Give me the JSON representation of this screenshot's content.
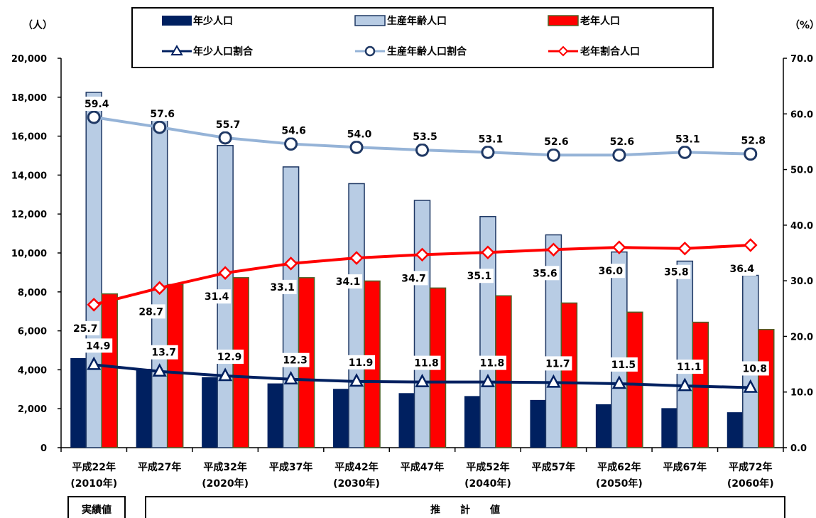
{
  "chart_data": {
    "type": "bar",
    "left_unit": "（人）",
    "right_unit": "（%）",
    "left_ylim": [
      0,
      20000
    ],
    "right_ylim": [
      0,
      70
    ],
    "left_ticks": [
      "0",
      "2,000",
      "4,000",
      "6,000",
      "8,000",
      "10,000",
      "12,000",
      "14,000",
      "16,000",
      "18,000",
      "20,000"
    ],
    "right_ticks": [
      "0.0",
      "10.0",
      "20.0",
      "30.0",
      "40.0",
      "50.0",
      "60.0",
      "70.0"
    ],
    "categories": [
      {
        "line1": "平成22年",
        "line2": "(2010年)"
      },
      {
        "line1": "平成27年",
        "line2": ""
      },
      {
        "line1": "平成32年",
        "line2": "(2020年)"
      },
      {
        "line1": "平成37年",
        "line2": ""
      },
      {
        "line1": "平成42年",
        "line2": "(2030年)"
      },
      {
        "line1": "平成47年",
        "line2": ""
      },
      {
        "line1": "平成52年",
        "line2": "(2040年)"
      },
      {
        "line1": "平成57年",
        "line2": ""
      },
      {
        "line1": "平成62年",
        "line2": "(2050年)"
      },
      {
        "line1": "平成67年",
        "line2": ""
      },
      {
        "line1": "平成72年",
        "line2": "(2060年)"
      }
    ],
    "bar_series": [
      {
        "name": "年少人口",
        "color": "#002060",
        "values": [
          4600,
          4050,
          3620,
          3300,
          3020,
          2800,
          2650,
          2450,
          2230,
          2030,
          1820
        ]
      },
      {
        "name": "生産年齢人口",
        "color": "#b8cce4",
        "stroke": "#1f3864",
        "values": [
          18250,
          16850,
          15520,
          14420,
          13560,
          12700,
          11870,
          10930,
          10050,
          9580,
          8850
        ]
      },
      {
        "name": "老年人口",
        "color": "#ff0000",
        "stroke": "#4f6228",
        "values": [
          7900,
          8380,
          8730,
          8730,
          8560,
          8200,
          7800,
          7430,
          6960,
          6440,
          6070
        ]
      }
    ],
    "line_series": [
      {
        "name": "年少人口割合",
        "color": "#002060",
        "marker": "triangle",
        "values": [
          14.9,
          13.7,
          12.9,
          12.3,
          11.9,
          11.8,
          11.8,
          11.7,
          11.5,
          11.1,
          10.8
        ]
      },
      {
        "name": "生産年齢人口割合",
        "color": "#95b3d7",
        "marker": "circle",
        "values": [
          59.4,
          57.6,
          55.7,
          54.6,
          54.0,
          53.5,
          53.1,
          52.6,
          52.6,
          53.1,
          52.8
        ]
      },
      {
        "name": "老年割合人口",
        "color": "#ff0000",
        "marker": "diamond",
        "values": [
          25.7,
          28.7,
          31.4,
          33.1,
          34.1,
          34.7,
          35.1,
          35.6,
          36.0,
          35.8,
          36.4
        ]
      }
    ],
    "labels": {
      "young": [
        "14.9",
        "13.7",
        "12.9",
        "12.3",
        "11.9",
        "11.8",
        "11.8",
        "11.7",
        "11.5",
        "11.1",
        "10.8"
      ],
      "working": [
        "59.4",
        "57.6",
        "55.7",
        "54.6",
        "54.0",
        "53.5",
        "53.1",
        "52.6",
        "52.6",
        "53.1",
        "52.8"
      ],
      "elderly": [
        "25.7",
        "28.7",
        "31.4",
        "33.1",
        "34.1",
        "34.7",
        "35.1",
        "35.6",
        "36.0",
        "35.8",
        "36.4"
      ]
    },
    "legend_position": "top",
    "footer": {
      "actual": "実績値",
      "projection": "推　　計　　値"
    }
  }
}
